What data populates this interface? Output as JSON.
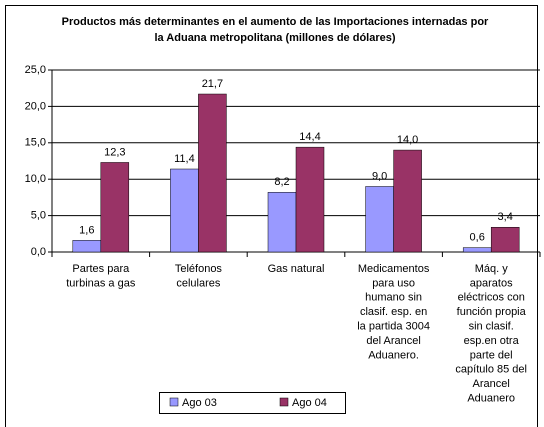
{
  "chart_data": {
    "type": "bar",
    "title": [
      "Productos más determinantes en el aumento de las Importaciones internadas por",
      "la Aduana metropolitana (millones de dólares)"
    ],
    "categories": [
      [
        "Partes para",
        "turbinas a gas"
      ],
      [
        "Teléfonos",
        "celulares"
      ],
      [
        "Gas natural"
      ],
      [
        "Medicamentos",
        "para uso",
        "humano sin",
        "clasif. esp. en",
        "la partida 3004",
        "del Arancel",
        "Aduanero."
      ],
      [
        "Máq. y",
        "aparatos",
        "eléctricos con",
        "función propia",
        "sin clasif.",
        "esp.en otra",
        "parte del",
        "capítulo 85 del",
        "Arancel",
        "Aduanero"
      ]
    ],
    "series": [
      {
        "name": "Ago 03",
        "color": "#9999ff",
        "values": [
          1.6,
          11.4,
          8.2,
          9.0,
          0.6
        ],
        "value_labels": [
          "1,6",
          "11,4",
          "8,2",
          "9,0",
          "0,6"
        ]
      },
      {
        "name": "Ago 04",
        "color": "#993366",
        "values": [
          12.3,
          21.7,
          14.4,
          14.0,
          3.4
        ],
        "value_labels": [
          "12,3",
          "21,7",
          "14,4",
          "14,0",
          "3,4"
        ]
      }
    ],
    "ylim": [
      0,
      25
    ],
    "yticks": [
      {
        "value": 0,
        "label": "0,0"
      },
      {
        "value": 5,
        "label": "5,0"
      },
      {
        "value": 10,
        "label": "10,0"
      },
      {
        "value": 15,
        "label": "15,0"
      },
      {
        "value": 20,
        "label": "20,0"
      },
      {
        "value": 25,
        "label": "25,0"
      }
    ],
    "grid": true,
    "legend": "bottom"
  }
}
